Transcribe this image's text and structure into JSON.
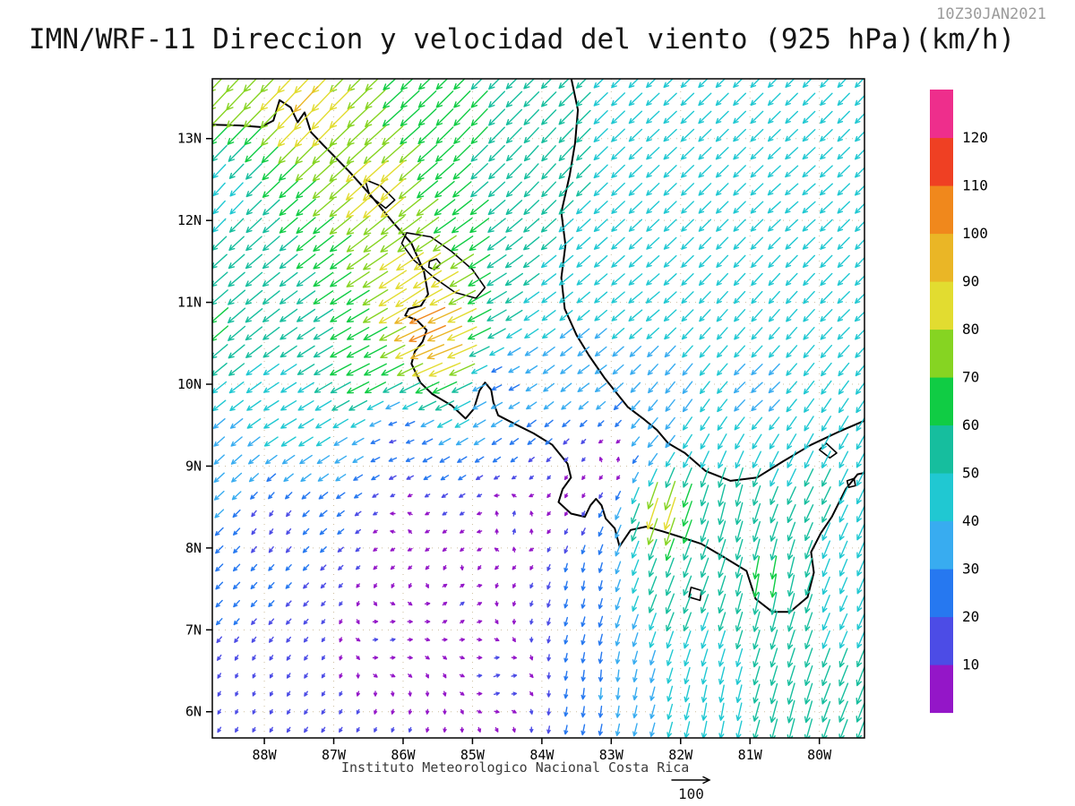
{
  "header": {
    "title": "IMN/WRF-11 Direccion y velocidad del viento (925 hPa)(km/h)",
    "timestamp": "10Z30JAN2021"
  },
  "footer": {
    "caption": "Instituto Meteorologico Nacional Costa Rica",
    "reference_label": "100"
  },
  "chart_data": {
    "type": "vector_field",
    "title": "IMN/WRF-11 Direccion y velocidad del viento (925 hPa)(km/h)",
    "timestamp": "10Z30JAN2021",
    "variable": "wind direction and speed",
    "level": "925 hPa",
    "units": "km/h",
    "domain": {
      "lon_min": -88.75,
      "lon_max": -79.35,
      "lat_min": 5.68,
      "lat_max": 13.73
    },
    "x_axis": {
      "ticks": [
        {
          "label": "88W",
          "lon": -88
        },
        {
          "label": "87W",
          "lon": -87
        },
        {
          "label": "86W",
          "lon": -86
        },
        {
          "label": "85W",
          "lon": -85
        },
        {
          "label": "84W",
          "lon": -84
        },
        {
          "label": "83W",
          "lon": -83
        },
        {
          "label": "82W",
          "lon": -82
        },
        {
          "label": "81W",
          "lon": -81
        },
        {
          "label": "80W",
          "lon": -80
        }
      ]
    },
    "y_axis": {
      "ticks": [
        {
          "label": "13N",
          "lat": 13
        },
        {
          "label": "12N",
          "lat": 12
        },
        {
          "label": "11N",
          "lat": 11
        },
        {
          "label": "10N",
          "lat": 10
        },
        {
          "label": "9N",
          "lat": 9
        },
        {
          "label": "8N",
          "lat": 8
        },
        {
          "label": "7N",
          "lat": 7
        },
        {
          "label": "6N",
          "lat": 6
        }
      ]
    },
    "colorbar": {
      "unit": "km/h",
      "levels": [
        10,
        20,
        30,
        40,
        50,
        60,
        70,
        80,
        90,
        100,
        110,
        120
      ],
      "colors": [
        "#9416c8",
        "#4c4ce6",
        "#2678f0",
        "#38acf0",
        "#20c8d2",
        "#16be9e",
        "#10cc44",
        "#86d422",
        "#e2dc30",
        "#eab626",
        "#f0881c",
        "#ef4023",
        "#ee2e8c"
      ]
    },
    "reference_vector": {
      "speed": 100
    },
    "vector_grid": {
      "lon_start": -88.65,
      "lon_step": 0.25,
      "cols": 38,
      "lat_start": 5.78,
      "lat_step": 0.22,
      "rows": 37
    },
    "idw_power": 2.2,
    "wind_control_points": [
      [
        -88.7,
        13.6,
        -55,
        -58
      ],
      [
        -87.4,
        13.4,
        -62,
        -66
      ],
      [
        -86.4,
        12.4,
        -64,
        -58
      ],
      [
        -88.7,
        12.3,
        -30,
        -33
      ],
      [
        -85.9,
        11.2,
        -75,
        -50
      ],
      [
        -85.6,
        10.7,
        -98,
        -42
      ],
      [
        -85.45,
        10.4,
        -92,
        -36
      ],
      [
        -86.6,
        10.15,
        -60,
        -30
      ],
      [
        -88.7,
        10.8,
        -46,
        -40
      ],
      [
        -87.6,
        9.6,
        -40,
        -24
      ],
      [
        -88.7,
        9.0,
        -26,
        -24
      ],
      [
        -85.0,
        13.2,
        -42,
        -44
      ],
      [
        -84.0,
        12.7,
        -36,
        -40
      ],
      [
        -82.3,
        13.0,
        -33,
        -31
      ],
      [
        -80.3,
        12.3,
        -33,
        -29
      ],
      [
        -79.5,
        10.9,
        -31,
        -30
      ],
      [
        -82.6,
        11.0,
        -35,
        -29
      ],
      [
        -83.3,
        10.1,
        -30,
        -22
      ],
      [
        -80.9,
        9.9,
        -29,
        -26
      ],
      [
        -84.6,
        10.05,
        -24,
        -12
      ],
      [
        -86.0,
        8.3,
        0,
        2
      ],
      [
        -84.4,
        8.3,
        4,
        14
      ],
      [
        -86.1,
        9.35,
        -16,
        -5
      ],
      [
        -87.9,
        8.3,
        -8,
        -13
      ],
      [
        -86.2,
        6.9,
        12,
        3
      ],
      [
        -84.6,
        6.4,
        15,
        5
      ],
      [
        -88.2,
        6.2,
        -4,
        -10
      ],
      [
        -85.2,
        7.3,
        10,
        8
      ],
      [
        -83.0,
        9.1,
        2,
        6
      ],
      [
        -83.6,
        8.7,
        -2,
        -4
      ],
      [
        -82.25,
        8.45,
        -28,
        -88
      ],
      [
        -82.1,
        7.4,
        -20,
        -52
      ],
      [
        -80.75,
        7.6,
        -10,
        -62
      ],
      [
        -80.1,
        8.7,
        -22,
        -46
      ],
      [
        -79.5,
        7.2,
        -18,
        -40
      ],
      [
        -83.1,
        6.3,
        -2,
        -30
      ],
      [
        -83.4,
        7.6,
        -4,
        -24
      ],
      [
        -81.5,
        6.0,
        -8,
        -45
      ],
      [
        -82.4,
        9.35,
        -26,
        -30
      ],
      [
        -81.3,
        8.5,
        -14,
        -58
      ],
      [
        -79.6,
        6.2,
        -22,
        -55
      ],
      [
        -80.4,
        5.9,
        -15,
        -58
      ]
    ],
    "map": {
      "coastlines": [
        [
          [
            -88.75,
            13.17
          ],
          [
            -88.35,
            13.16
          ],
          [
            -88.05,
            13.14
          ],
          [
            -87.87,
            13.22
          ],
          [
            -87.78,
            13.47
          ],
          [
            -87.62,
            13.38
          ],
          [
            -87.52,
            13.2
          ],
          [
            -87.42,
            13.32
          ],
          [
            -87.33,
            13.08
          ],
          [
            -87.15,
            12.92
          ],
          [
            -86.78,
            12.6
          ],
          [
            -86.48,
            12.32
          ],
          [
            -86.15,
            11.98
          ],
          [
            -85.88,
            11.72
          ],
          [
            -85.7,
            11.38
          ],
          [
            -85.64,
            11.1
          ],
          [
            -85.74,
            10.96
          ],
          [
            -85.92,
            10.92
          ],
          [
            -85.97,
            10.84
          ],
          [
            -85.8,
            10.78
          ],
          [
            -85.66,
            10.66
          ],
          [
            -85.72,
            10.52
          ],
          [
            -85.83,
            10.4
          ],
          [
            -85.88,
            10.25
          ],
          [
            -85.75,
            10.02
          ],
          [
            -85.58,
            9.88
          ],
          [
            -85.3,
            9.74
          ],
          [
            -85.1,
            9.58
          ],
          [
            -84.98,
            9.7
          ],
          [
            -84.9,
            9.92
          ],
          [
            -84.82,
            10.02
          ],
          [
            -84.73,
            9.93
          ],
          [
            -84.7,
            9.78
          ],
          [
            -84.63,
            9.62
          ],
          [
            -84.38,
            9.51
          ],
          [
            -84.12,
            9.4
          ],
          [
            -83.85,
            9.26
          ],
          [
            -83.63,
            9.03
          ],
          [
            -83.58,
            8.86
          ],
          [
            -83.7,
            8.72
          ],
          [
            -83.76,
            8.56
          ],
          [
            -83.58,
            8.42
          ],
          [
            -83.38,
            8.38
          ],
          [
            -83.3,
            8.52
          ],
          [
            -83.22,
            8.6
          ],
          [
            -83.14,
            8.52
          ],
          [
            -83.08,
            8.36
          ],
          [
            -82.95,
            8.24
          ],
          [
            -82.88,
            8.02
          ],
          [
            -82.72,
            8.22
          ],
          [
            -82.5,
            8.26
          ],
          [
            -82.25,
            8.2
          ],
          [
            -81.95,
            8.12
          ],
          [
            -81.7,
            8.05
          ],
          [
            -81.4,
            7.9
          ],
          [
            -81.05,
            7.72
          ],
          [
            -80.92,
            7.38
          ],
          [
            -80.68,
            7.22
          ],
          [
            -80.42,
            7.22
          ],
          [
            -80.17,
            7.4
          ],
          [
            -80.08,
            7.7
          ],
          [
            -80.12,
            7.95
          ],
          [
            -79.98,
            8.18
          ],
          [
            -79.82,
            8.38
          ],
          [
            -79.62,
            8.72
          ],
          [
            -79.45,
            8.9
          ],
          [
            -79.28,
            8.93
          ]
        ],
        [
          [
            -83.58,
            13.75
          ],
          [
            -83.48,
            13.35
          ],
          [
            -83.52,
            12.95
          ],
          [
            -83.6,
            12.55
          ],
          [
            -83.72,
            12.1
          ],
          [
            -83.66,
            11.7
          ],
          [
            -83.72,
            11.3
          ],
          [
            -83.67,
            10.92
          ],
          [
            -83.5,
            10.6
          ],
          [
            -83.32,
            10.35
          ],
          [
            -83.1,
            10.08
          ],
          [
            -82.95,
            9.92
          ],
          [
            -82.76,
            9.72
          ],
          [
            -82.54,
            9.58
          ],
          [
            -82.34,
            9.44
          ],
          [
            -82.18,
            9.28
          ],
          [
            -81.94,
            9.16
          ],
          [
            -81.64,
            8.94
          ],
          [
            -81.28,
            8.82
          ],
          [
            -80.9,
            8.86
          ],
          [
            -80.52,
            9.06
          ],
          [
            -80.12,
            9.26
          ],
          [
            -79.72,
            9.42
          ],
          [
            -79.28,
            9.58
          ]
        ]
      ],
      "lakes": [
        [
          [
            -86.02,
            11.72
          ],
          [
            -85.95,
            11.85
          ],
          [
            -85.6,
            11.8
          ],
          [
            -85.3,
            11.62
          ],
          [
            -85.0,
            11.4
          ],
          [
            -84.82,
            11.18
          ],
          [
            -84.95,
            11.05
          ],
          [
            -85.25,
            11.12
          ],
          [
            -85.55,
            11.3
          ],
          [
            -85.85,
            11.52
          ]
        ],
        [
          [
            -86.55,
            12.5
          ],
          [
            -86.32,
            12.42
          ],
          [
            -86.12,
            12.25
          ],
          [
            -86.25,
            12.15
          ],
          [
            -86.48,
            12.3
          ]
        ],
        [
          [
            -80.0,
            9.2
          ],
          [
            -79.85,
            9.1
          ],
          [
            -79.75,
            9.16
          ],
          [
            -79.9,
            9.28
          ]
        ]
      ],
      "islands": [
        [
          [
            -85.62,
            11.5
          ],
          [
            -85.52,
            11.53
          ],
          [
            -85.46,
            11.47
          ],
          [
            -85.55,
            11.4
          ],
          [
            -85.63,
            11.43
          ]
        ],
        [
          [
            -81.85,
            7.52
          ],
          [
            -81.7,
            7.48
          ],
          [
            -81.72,
            7.36
          ],
          [
            -81.88,
            7.4
          ]
        ],
        [
          [
            -79.6,
            8.82
          ],
          [
            -79.5,
            8.85
          ],
          [
            -79.48,
            8.76
          ],
          [
            -79.58,
            8.74
          ]
        ]
      ]
    }
  }
}
